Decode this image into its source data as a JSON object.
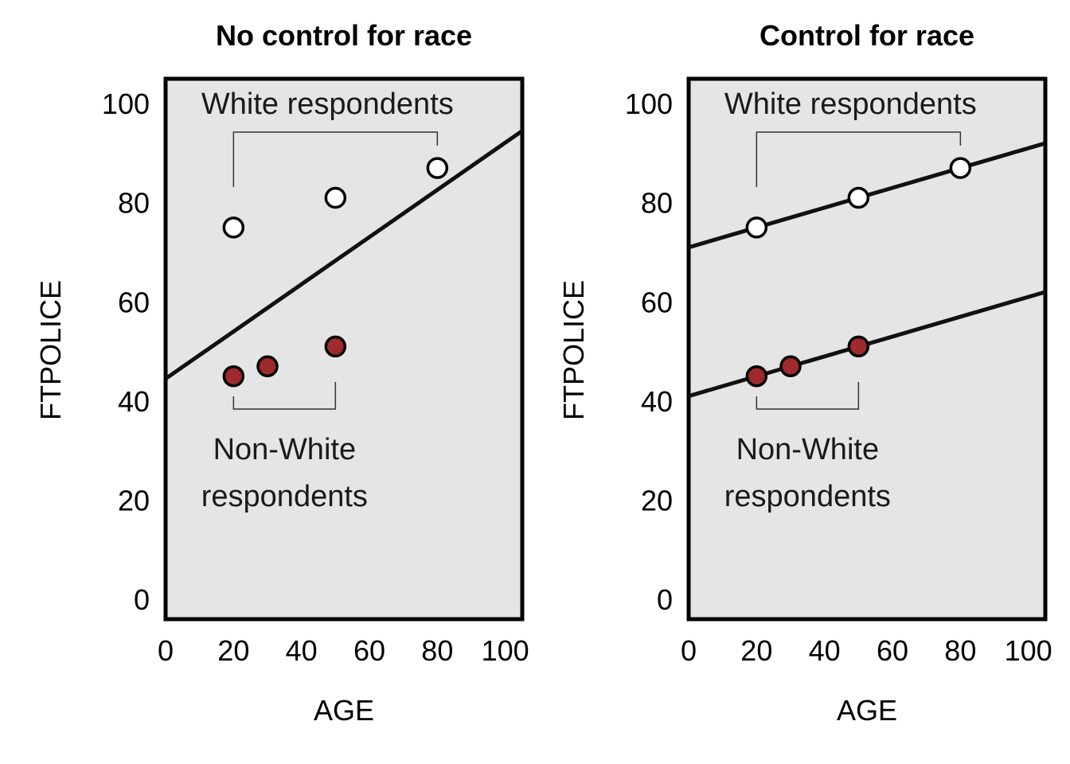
{
  "chart_data": [
    {
      "type": "scatter",
      "title": "No control for race",
      "xlabel": "AGE",
      "ylabel": "FTPOLICE",
      "xlim": [
        0,
        105
      ],
      "ylim": [
        -4,
        105
      ],
      "xticks": [
        0,
        20,
        40,
        60,
        80,
        100
      ],
      "yticks": [
        0,
        20,
        40,
        60,
        80,
        100
      ],
      "grid": false,
      "series": [
        {
          "group": "white",
          "color": "#ffffff",
          "x": [
            20,
            50,
            80
          ],
          "y": [
            75,
            81,
            87
          ]
        },
        {
          "group": "nonwhite",
          "color": "#9e2a2b",
          "x": [
            20,
            30,
            50
          ],
          "y": [
            45,
            47,
            51
          ]
        }
      ],
      "lines": [
        {
          "x": [
            0,
            105
          ],
          "y": [
            44.5,
            94.5
          ]
        }
      ],
      "annotations": [
        {
          "text": [
            "White respondents"
          ],
          "group": "white"
        },
        {
          "text": [
            "Non-White",
            "respondents"
          ],
          "group": "nonwhite"
        }
      ]
    },
    {
      "type": "scatter",
      "title": "Control for race",
      "xlabel": "AGE",
      "ylabel": "FTPOLICE",
      "xlim": [
        0,
        105
      ],
      "ylim": [
        -4,
        105
      ],
      "xticks": [
        0,
        20,
        40,
        60,
        80,
        100
      ],
      "yticks": [
        0,
        20,
        40,
        60,
        80,
        100
      ],
      "grid": false,
      "series": [
        {
          "group": "white",
          "color": "#ffffff",
          "x": [
            20,
            50,
            80
          ],
          "y": [
            75,
            81,
            87
          ]
        },
        {
          "group": "nonwhite",
          "color": "#9e2a2b",
          "x": [
            20,
            30,
            50
          ],
          "y": [
            45,
            47,
            51
          ]
        }
      ],
      "lines": [
        {
          "x": [
            0,
            105
          ],
          "y": [
            71,
            92
          ]
        },
        {
          "x": [
            0,
            105
          ],
          "y": [
            41,
            62
          ]
        }
      ],
      "annotations": [
        {
          "text": [
            "White respondents"
          ],
          "group": "white"
        },
        {
          "text": [
            "Non-White",
            "respondents"
          ],
          "group": "nonwhite"
        }
      ]
    }
  ]
}
